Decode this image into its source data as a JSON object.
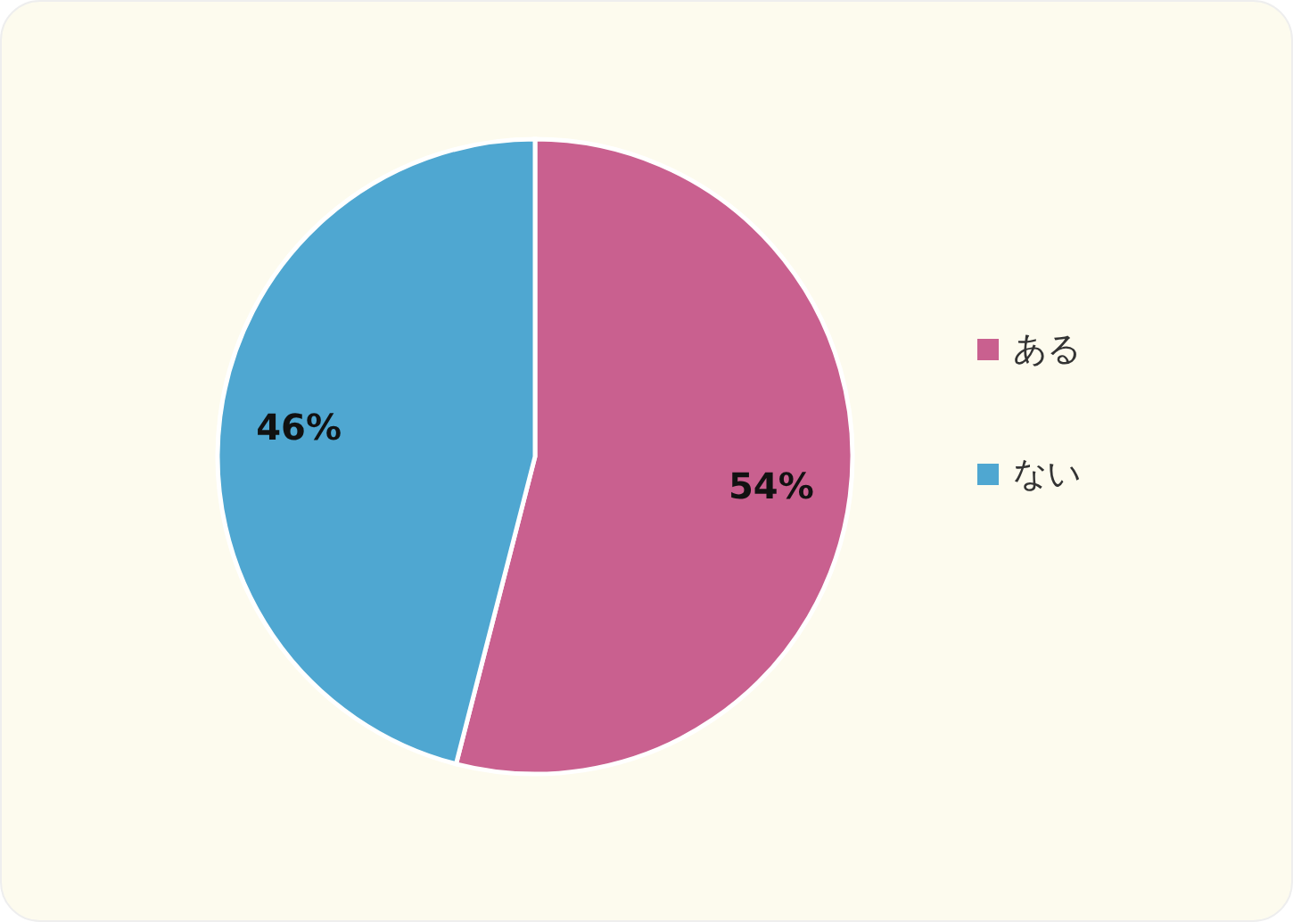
{
  "chart_data": {
    "type": "pie",
    "categories": [
      "ある",
      "ない"
    ],
    "values": [
      54,
      46
    ],
    "colors": [
      "#c9608f",
      "#4fa7d1"
    ],
    "value_labels": [
      "54%",
      "46%"
    ],
    "legend": "right"
  }
}
